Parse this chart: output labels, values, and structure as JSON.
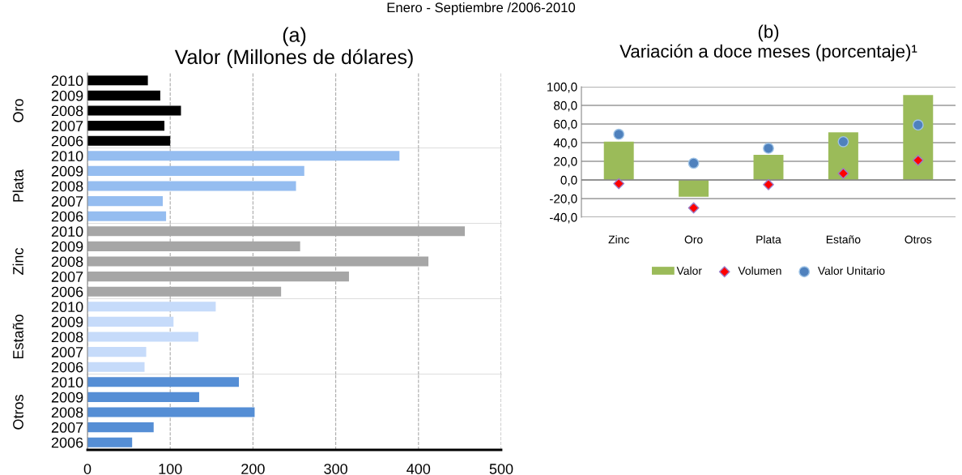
{
  "chart_data": [
    {
      "type": "bar",
      "orientation": "horizontal",
      "title": "(a)\nValor (Millones de dólares)",
      "annotations": [
        "Enero - Septiembre /2006-2010"
      ],
      "ylabel": "Oro",
      "categories": [
        "2010",
        "2009",
        "2008",
        "2007",
        "2006"
      ],
      "values": [
        73,
        88,
        113,
        93,
        100
      ],
      "color": "#000000",
      "xlim": [
        0,
        500
      ],
      "xticks": [
        0,
        100,
        200,
        300,
        400,
        500
      ],
      "grid": "x",
      "tick_labels": "y"
    },
    {
      "type": "bar",
      "orientation": "horizontal",
      "ylabel": "Plata",
      "categories": [
        "2010",
        "2009",
        "2008",
        "2007",
        "2006"
      ],
      "values": [
        377,
        262,
        252,
        91,
        95
      ],
      "color": "#95bdf0",
      "xlim": [
        0,
        500
      ],
      "xticks": [
        0,
        100,
        200,
        300,
        400,
        500
      ],
      "grid": "x",
      "tick_labels": "y"
    },
    {
      "type": "bar",
      "orientation": "horizontal",
      "ylabel": "Zinc",
      "categories": [
        "2010",
        "2009",
        "2008",
        "2007",
        "2006"
      ],
      "values": [
        456,
        257,
        412,
        316,
        234
      ],
      "color": "#a6a6a6",
      "xlim": [
        0,
        500
      ],
      "xticks": [
        0,
        100,
        200,
        300,
        400,
        500
      ],
      "grid": "x",
      "tick_labels": "y"
    },
    {
      "type": "bar",
      "orientation": "horizontal",
      "ylabel": "Estaño",
      "categories": [
        "2010",
        "2009",
        "2008",
        "2007",
        "2006"
      ],
      "values": [
        155,
        104,
        134,
        71,
        69
      ],
      "color": "#c6dbfa",
      "xlim": [
        0,
        500
      ],
      "xticks": [
        0,
        100,
        200,
        300,
        400,
        500
      ],
      "grid": "x",
      "tick_labels": "y"
    },
    {
      "type": "bar",
      "orientation": "horizontal",
      "ylabel": "Otros",
      "categories": [
        "2010",
        "2009",
        "2008",
        "2007",
        "2006"
      ],
      "values": [
        183,
        135,
        202,
        80,
        54
      ],
      "color": "#558ed5",
      "xlim": [
        0,
        500
      ],
      "xticks": [
        0,
        100,
        200,
        300,
        400,
        500
      ],
      "grid": "x"
    },
    {
      "type": "bar",
      "title": "(b)\nVariación a doce meses (porcentaje)¹",
      "categories": [
        "Zinc",
        "Oro",
        "Plata",
        "Estaño",
        "Otros"
      ],
      "series": [
        {
          "name": "Valor",
          "color": "#9bbb59",
          "values": [
            41,
            -18,
            27,
            51,
            91
          ]
        },
        {
          "name": "Volumen",
          "type": "scatter",
          "marker": "diamond",
          "color": "#ff0000",
          "values": [
            -4,
            -30,
            -5,
            7,
            21
          ]
        },
        {
          "name": "Valor Unitario",
          "type": "scatter",
          "marker": "circle",
          "color": "#4f81bd",
          "values": [
            49,
            18,
            34,
            41,
            59
          ]
        }
      ],
      "ylim": [
        -40,
        100
      ],
      "yticks": [
        {
          "value": -40,
          "label": "-40,0"
        },
        {
          "value": -20,
          "label": "-20,0"
        },
        {
          "value": 0,
          "label": "0,0"
        },
        {
          "value": 20,
          "label": "20,0"
        },
        {
          "value": 40,
          "label": "40,0"
        },
        {
          "value": 60,
          "label": "60,0"
        },
        {
          "value": 80,
          "label": "80,0"
        },
        {
          "value": 100,
          "label": "100,0"
        }
      ],
      "grid": "y",
      "legend": "bottom"
    }
  ]
}
